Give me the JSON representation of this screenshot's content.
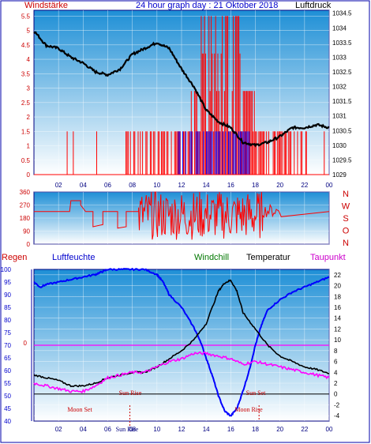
{
  "header": {
    "title": "24 hour graph day : 21 Oktober 2018",
    "left_label": "Windstärke",
    "right_label": "Luftdruck"
  },
  "wind_direction": {
    "ticks_left": [
      "360",
      "270",
      "180",
      "90",
      "0"
    ],
    "labels_right": [
      "N",
      "W",
      "S",
      "O",
      "N"
    ]
  },
  "lower_legend": {
    "regen": "Regen",
    "luftfeuchte": "Luftfeuchte",
    "windchill": "Windchill",
    "temperatur": "Temperatur",
    "taupunkt": "Taupunkt"
  },
  "astro": {
    "sun_rise": "Sun Rise",
    "sun_set": "Sun Set",
    "moon_set": "Moon Set",
    "moon_rise": "Moon Rise",
    "sun_rise_hour": 7.8,
    "moon_rise_hour": 18.3,
    "moon_set_hour": 3.9
  },
  "colors": {
    "wind": "#ff0000",
    "gust": "#0000ff",
    "pressure": "#000000",
    "humidity": "#0000ff",
    "temperature": "#000000",
    "dewpoint": "#ff00ff",
    "rain": "#ff0000",
    "background_top": "#1e8fd6",
    "background_bottom": "#ffffff"
  },
  "chart_data": [
    {
      "type": "line",
      "name": "wind_and_pressure",
      "x_ticks": [
        "02",
        "04",
        "06",
        "08",
        "10",
        "12",
        "14",
        "16",
        "18",
        "20",
        "22",
        "00"
      ],
      "xlim": [
        0,
        24
      ],
      "left_axis": {
        "label": "Windstärke",
        "ticks": [
          "5.5",
          "5",
          "4.5",
          "4",
          "3.5",
          "3",
          "2.5",
          "2",
          "1.5",
          "1",
          "0.5",
          "0"
        ],
        "ylim": [
          0,
          5.7
        ]
      },
      "right_axis": {
        "label": "Luftdruck",
        "ticks": [
          "1034.5",
          "1034",
          "1033.5",
          "1033",
          "1032.5",
          "1032",
          "1031.5",
          "1031",
          "1030.5",
          "1030",
          "1029.5",
          "1029"
        ],
        "ylim": [
          1029,
          1034.6
        ]
      },
      "pressure": {
        "x": [
          0,
          1,
          2,
          3,
          4,
          5,
          6,
          7,
          8,
          9,
          10,
          11,
          12,
          13,
          14,
          15,
          16,
          17,
          18,
          19,
          20,
          21,
          22,
          23,
          24
        ],
        "y": [
          1033.9,
          1033.4,
          1033.3,
          1033.0,
          1032.8,
          1032.5,
          1032.4,
          1032.6,
          1033.1,
          1033.3,
          1033.5,
          1033.3,
          1032.6,
          1032.0,
          1031.2,
          1030.8,
          1030.6,
          1030.1,
          1030.0,
          1030.1,
          1030.3,
          1030.6,
          1030.6,
          1030.7,
          1030.6
        ]
      }
    },
    {
      "type": "line",
      "name": "wind_direction",
      "xlim": [
        0,
        24
      ],
      "ylim": [
        0,
        360
      ],
      "ticks": [
        "360",
        "270",
        "180",
        "90",
        "0"
      ]
    },
    {
      "type": "line",
      "name": "humidity_temperature",
      "x_ticks": [
        "02",
        "04",
        "06",
        "08",
        "10",
        "12",
        "14",
        "16",
        "18",
        "20",
        "22",
        "00"
      ],
      "xlim": [
        0,
        24
      ],
      "left_axis": {
        "label": "Luftfeuchte",
        "ticks": [
          "100",
          "95",
          "90",
          "85",
          "80",
          "75",
          "70",
          "65",
          "60",
          "55",
          "50",
          "45",
          "40"
        ],
        "ylim": [
          40,
          100
        ]
      },
      "right_axis": {
        "label": "Temperatur",
        "ticks": [
          "22",
          "20",
          "18",
          "16",
          "14",
          "12",
          "10",
          "8",
          "6",
          "4",
          "2",
          "0",
          "-2",
          "-4"
        ],
        "ylim": [
          -5,
          23
        ]
      },
      "rain_ticks": [
        "0"
      ],
      "series": [
        {
          "name": "Luftfeuchte",
          "color": "#0000ff",
          "x": [
            0,
            0.5,
            1,
            2,
            3,
            4,
            5,
            5.5,
            6,
            7,
            8,
            9,
            10,
            10.5,
            11,
            12,
            13,
            13.5,
            14,
            14.5,
            15,
            15.5,
            16,
            16.5,
            17,
            17.5,
            18,
            18.5,
            19,
            20,
            21,
            22,
            23,
            24
          ],
          "y": [
            95,
            93,
            94,
            95,
            96,
            97,
            98,
            99,
            100,
            100,
            100,
            100,
            98,
            95,
            90,
            85,
            77,
            72,
            65,
            58,
            50,
            44,
            42,
            45,
            52,
            60,
            70,
            78,
            84,
            88,
            91,
            93,
            95,
            97
          ]
        },
        {
          "name": "Temperatur",
          "color": "#000000",
          "x": [
            0,
            1,
            2,
            3,
            4,
            5,
            6,
            7,
            8,
            9,
            10,
            11,
            12,
            13,
            14,
            15,
            15.5,
            16,
            16.5,
            17,
            18,
            19,
            20,
            21,
            22,
            23,
            24
          ],
          "y": [
            3.5,
            3.0,
            2.5,
            1.5,
            1.5,
            2.0,
            3.0,
            3.5,
            4.0,
            4.0,
            5.0,
            6.5,
            8.0,
            10.0,
            13.0,
            19.0,
            20.5,
            21.0,
            19.0,
            15.0,
            12.0,
            9.0,
            7.0,
            6.0,
            5.0,
            4.5,
            3.8
          ]
        },
        {
          "name": "Taupunkt",
          "color": "#ff00ff",
          "x": [
            0,
            1,
            2,
            3,
            4,
            5,
            6,
            7,
            8,
            9,
            10,
            11,
            12,
            13,
            14,
            15,
            16,
            17,
            18,
            19,
            20,
            21,
            22,
            23,
            24
          ],
          "y": [
            2.0,
            1.5,
            1.0,
            0.5,
            0.5,
            1.5,
            3.0,
            3.5,
            4.0,
            4.0,
            5.0,
            6.0,
            6.5,
            7.5,
            7.5,
            7.0,
            6.5,
            5.5,
            6.0,
            5.5,
            5.0,
            4.5,
            4.0,
            3.5,
            3.0
          ]
        }
      ]
    }
  ]
}
